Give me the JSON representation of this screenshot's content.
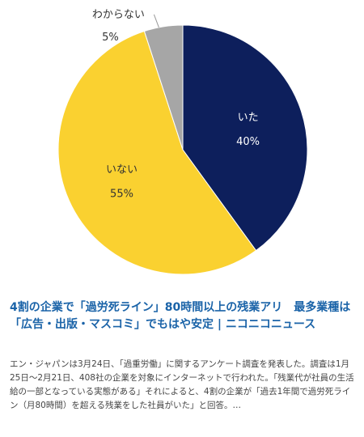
{
  "chart_data": {
    "type": "pie",
    "categories": [
      "いた",
      "いない",
      "わからない"
    ],
    "values": [
      40,
      55,
      5
    ],
    "labels": [
      "40%",
      "55%",
      "5%"
    ],
    "colors": [
      "#0d1f5c",
      "#fad130",
      "#a6a6a6"
    ],
    "label_colors": [
      "#ffffff",
      "#333333",
      "#333333"
    ],
    "start_angle_deg": 0,
    "direction": "clockwise"
  },
  "article": {
    "title": "4割の企業で「過労死ライン」80時間以上の残業アリ　最多業種は「広告・出版・マスコミ」でもはや安定 | ニコニコニュース",
    "excerpt": "エン・ジャパンは3月24日、「過重労働」に関するアンケート調査を発表した。調査は1月25日〜2月21日、408社の企業を対象にインターネットで行われた。「残業代が社員の生活給の一部となっている実態がある」それによると、4割の企業が「過去1年間で過労死ライン（月80時間）を超える残業をした社員がいた」と回答。…"
  }
}
